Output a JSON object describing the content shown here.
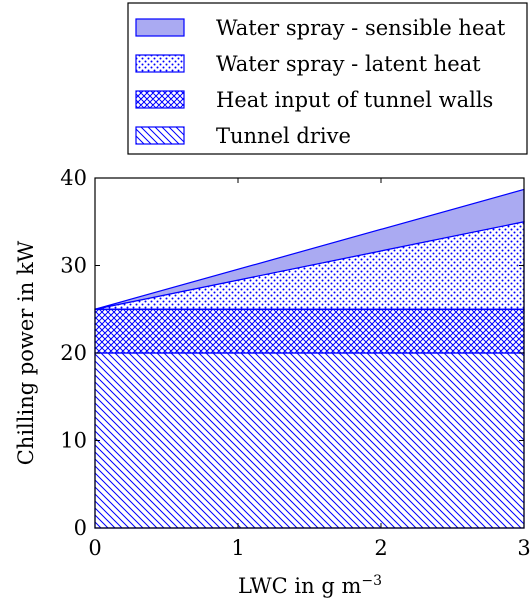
{
  "chart_data": {
    "type": "area",
    "stacked": true,
    "xlabel": "LWC in",
    "xlabel_unit": "g m",
    "xlabel_unit_exp": "−3",
    "ylabel": "Chilling power in kW",
    "xlim": [
      0,
      3
    ],
    "ylim": [
      0,
      40
    ],
    "xticks": [
      0,
      1,
      2,
      3
    ],
    "yticks": [
      0,
      10,
      20,
      30,
      40
    ],
    "grid": false,
    "legend_position": "top-right, outside above plot",
    "x": [
      0,
      3
    ],
    "series": [
      {
        "name": "Tunnel drive",
        "values": [
          20,
          20
        ],
        "pattern": "diagonal-hatch"
      },
      {
        "name": "Heat input of tunnel walls",
        "values": [
          5,
          5
        ],
        "pattern": "crosshatch"
      },
      {
        "name": "Water spray - latent heat",
        "values": [
          0,
          10
        ],
        "pattern": "dots"
      },
      {
        "name": "Water spray - sensible heat",
        "values": [
          0,
          3.7
        ],
        "pattern": "solid"
      }
    ],
    "legend_order": [
      "Water spray - sensible heat",
      "Water spray - latent heat",
      "Heat input of tunnel walls",
      "Tunnel drive"
    ],
    "colors": {
      "line": "#0000ff",
      "fill_solid": "#aaaaf2"
    }
  }
}
